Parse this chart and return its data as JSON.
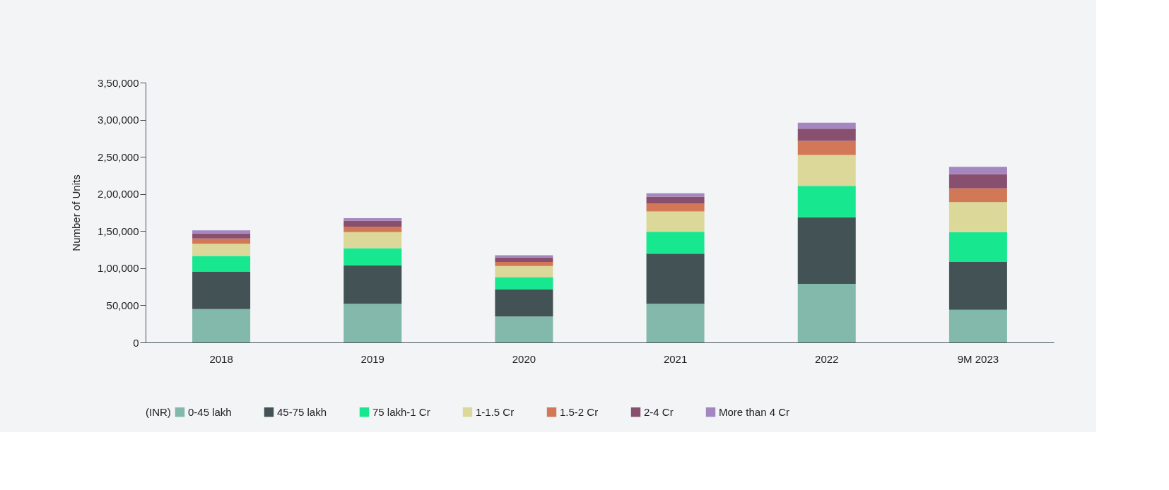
{
  "chart_data": {
    "type": "bar",
    "stacked": true,
    "ylabel": "Number of Units",
    "legend_title": "(INR)",
    "legend": "bottom",
    "grid": false,
    "categories": [
      "2018",
      "2019",
      "2020",
      "2021",
      "2022",
      "9M 2023"
    ],
    "ylim": [
      0,
      350000
    ],
    "yticks": [
      {
        "value": 0,
        "label": "0"
      },
      {
        "value": 50000,
        "label": "50,000"
      },
      {
        "value": 100000,
        "label": "1,00,000"
      },
      {
        "value": 150000,
        "label": "1,50,000"
      },
      {
        "value": 200000,
        "label": "2,00,000"
      },
      {
        "value": 250000,
        "label": "2,50,000"
      },
      {
        "value": 300000,
        "label": "3,00,000"
      },
      {
        "value": 350000,
        "label": "3,50,000"
      }
    ],
    "series": [
      {
        "name": "0-45 lakh",
        "color": "#82b9aa",
        "values": [
          45000,
          52000,
          35000,
          52000,
          79000,
          44000
        ]
      },
      {
        "name": "45-75 lakh",
        "color": "#435254",
        "values": [
          50000,
          52000,
          36500,
          67500,
          89500,
          64500
        ]
      },
      {
        "name": "75 lakh-1 Cr",
        "color": "#17e88f",
        "values": [
          21500,
          23000,
          16500,
          29500,
          42500,
          40000
        ]
      },
      {
        "name": "1-1.5 Cr",
        "color": "#dbd89a",
        "values": [
          16500,
          21500,
          15000,
          27500,
          41500,
          40500
        ]
      },
      {
        "name": "1.5-2 Cr",
        "color": "#d27857",
        "values": [
          7000,
          7500,
          5500,
          10500,
          19000,
          18500
        ]
      },
      {
        "name": "2-4 Cr",
        "color": "#884f6f",
        "values": [
          7000,
          8000,
          6000,
          9500,
          16500,
          19000
        ]
      },
      {
        "name": "More than 4 Cr",
        "color": "#a487c0",
        "values": [
          4000,
          3500,
          3000,
          4500,
          8000,
          10000
        ]
      }
    ]
  }
}
